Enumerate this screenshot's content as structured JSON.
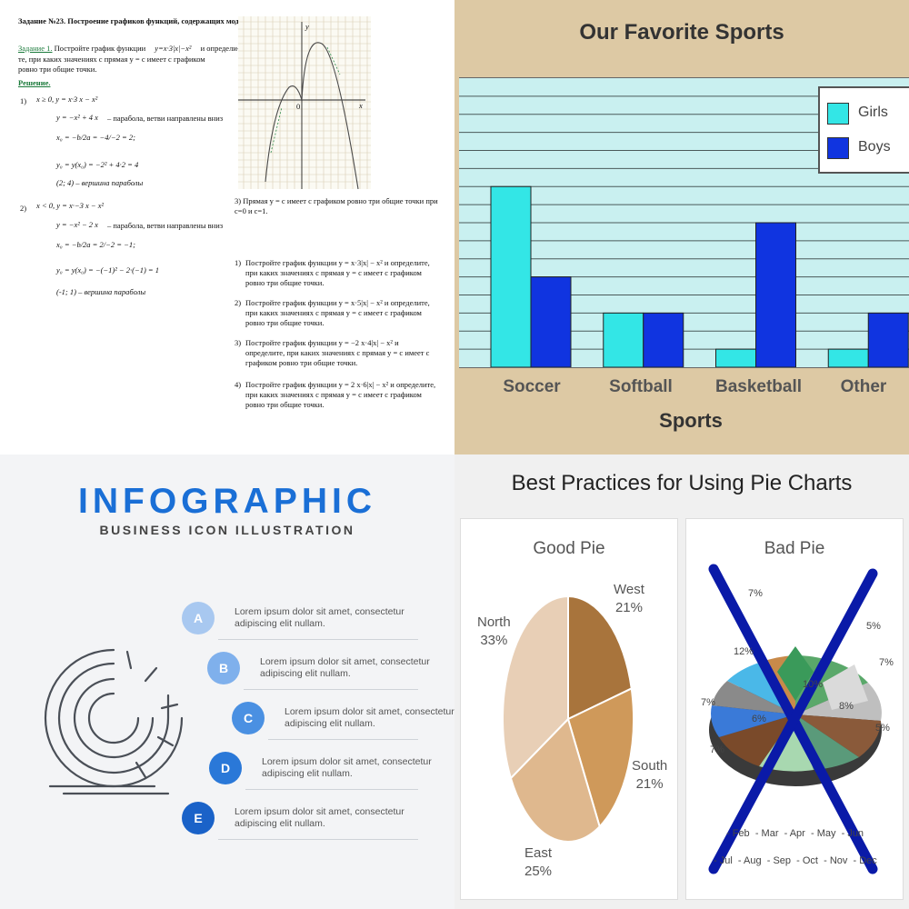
{
  "math": {
    "title": "Задание №23. Построение графиков функций, содержащих модуль",
    "task_label": "Задание 1.",
    "task_text_a": "Постройте график функции",
    "task_func": "y=x·3|x|−x²",
    "task_text_b": "и определи-",
    "task_text_c": "те, при каких значениях с прямая  y = c имеет с графиком ровно три общие точки.",
    "solution_label": "Решение.",
    "case1_num": "1)",
    "case1_cond": "x ≥ 0, y = x·3 x − x²",
    "case1_eq": "y = −x² + 4 x",
    "case1_note": "– парабола, ветви направлены вниз",
    "case1_x0": "x₀ = −b/2a = −4/−2 = 2;",
    "case1_y0": "y₀ = y(x₀) = −2² + 4·2 = 4",
    "case1_vertex": "(2; 4) – вершина параболы",
    "case2_num": "2)",
    "case2_cond": "x < 0, y = x·−3 x − x²",
    "case2_eq": "y = −x² − 2 x",
    "case2_note": "– парабола, ветви направлены вниз",
    "case2_x0": "x₀ = −b/2a = 2/−2 = −1;",
    "case2_y0": "y₀ = y(x₀) = −(−1)² − 2·(−1) = 1",
    "case2_vertex": "(-1; 1) – вершина параболы",
    "case3_text": "3)  Прямая  y = c имеет с графиком ровно три общие точки при c=0 и c=1.",
    "tasks": [
      {
        "num": "1)",
        "text": "Постройте график функции   y = x·3|x| − x²   и определите, при каких значениях с прямая  y = c имеет с графиком ровно три общие точки."
      },
      {
        "num": "2)",
        "text": "Постройте график функции   y = x·5|x| − x²   и определите, при каких значениях с прямая  y = c имеет с графиком ровно три общие точки."
      },
      {
        "num": "3)",
        "text": "Постройте график функции   y = −2 x·4|x| − x²   и определите, при каких значениях с прямая  y = c имеет с графиком ровно три общие точки."
      },
      {
        "num": "4)",
        "text": "Постройте график функции   y = 2 x·6|x| − x²   и определите, при каких значениях с прямая  y = c имеет с графиком ровно три общие точки."
      }
    ],
    "graph_axis_y": "y",
    "graph_axis_x": "x",
    "graph_origin": "0"
  },
  "sports": {
    "chart_data": {
      "type": "bar",
      "title": "Our Favorite Sports",
      "xlabel": "Sports",
      "ylabel": "",
      "categories": [
        "Soccer",
        "Softball",
        "Basketball",
        "Other"
      ],
      "series": [
        {
          "name": "Girls",
          "values": [
            10,
            3,
            1,
            1
          ],
          "color": "#33e6e6"
        },
        {
          "name": "Boys",
          "values": [
            5,
            3,
            8,
            3
          ],
          "color": "#1034e0"
        }
      ],
      "ylim": [
        0,
        16
      ],
      "grid": true,
      "legend": "top-right"
    }
  },
  "infographic": {
    "title": "INFOGRAPHIC",
    "subtitle": "BUSINESS ICON ILLUSTRATION",
    "steps": [
      {
        "letter": "A",
        "text": "Lorem ipsum dolor sit amet, consectetur adipiscing elit nullam.",
        "color": "#a8c8f0"
      },
      {
        "letter": "B",
        "text": "Lorem ipsum dolor sit amet, consectetur adipiscing elit nullam.",
        "color": "#7fb0ec"
      },
      {
        "letter": "C",
        "text": "Lorem ipsum dolor sit amet, consectetur adipiscing elit nullam.",
        "color": "#4a90e2"
      },
      {
        "letter": "D",
        "text": "Lorem ipsum dolor sit amet, consectetur adipiscing elit nullam.",
        "color": "#2a78d8"
      },
      {
        "letter": "E",
        "text": "Lorem ipsum dolor sit amet, consectetur adipiscing elit nullam.",
        "color": "#1a62c8"
      }
    ]
  },
  "pies": {
    "title": "Best Practices for Using Pie Charts",
    "good": {
      "title": "Good Pie",
      "chart_data": {
        "type": "pie",
        "categories": [
          "West",
          "South",
          "East",
          "North"
        ],
        "values": [
          21,
          21,
          25,
          33
        ],
        "colors": [
          "#a8743c",
          "#cf995a",
          "#dfb88e",
          "#e8cfb6"
        ]
      },
      "labels": [
        {
          "name": "West",
          "pct": "21%"
        },
        {
          "name": "South",
          "pct": "21%"
        },
        {
          "name": "East",
          "pct": "25%"
        },
        {
          "name": "North",
          "pct": "33%"
        }
      ]
    },
    "bad": {
      "title": "Bad Pie",
      "pct_labels": [
        "7%",
        "5%",
        "7%",
        "7%",
        "5%",
        "7%",
        "13%",
        "12%",
        "8%",
        "6%",
        "10%"
      ],
      "months_row1": [
        "- Feb",
        "- Mar",
        "- Apr",
        "- May",
        "- Jun"
      ],
      "months_row2": [
        "- Jul",
        "- Aug",
        "- Sep",
        "- Oct",
        "- Nov",
        "- Dec"
      ],
      "cross_color": "#0a1aa8"
    }
  }
}
